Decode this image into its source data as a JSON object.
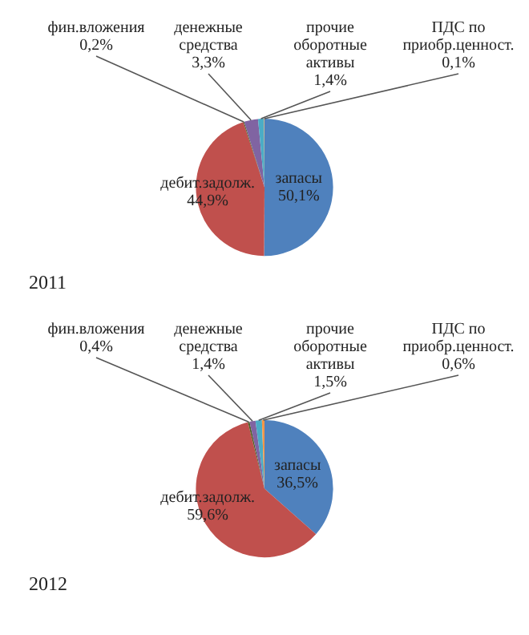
{
  "chart_data": [
    {
      "type": "pie",
      "title": "2011",
      "categories": [
        "запасы",
        "дебит.задолж.",
        "фин.вложения",
        "денежные средства",
        "прочие оборотные активы",
        "ПДС по приобр.ценност."
      ],
      "values": [
        50.1,
        44.9,
        0.2,
        3.3,
        1.4,
        0.1
      ],
      "value_labels": [
        "50,1%",
        "44,9%",
        "0,2%",
        "3,3%",
        "1,4%",
        "0,1%"
      ],
      "colors": [
        "#4f81bd",
        "#c0504d",
        "#4f6228",
        "#8064a2",
        "#4bacc6",
        "#f79646"
      ],
      "legend": false
    },
    {
      "type": "pie",
      "title": "2012",
      "categories": [
        "запасы",
        "дебит.задолж.",
        "фин.вложения",
        "денежные средства",
        "прочие оборотные активы",
        "ПДС по приобр.ценност."
      ],
      "values": [
        36.5,
        59.6,
        0.4,
        1.4,
        1.5,
        0.6
      ],
      "value_labels": [
        "36,5%",
        "59,6%",
        "0,4%",
        "1,4%",
        "1,5%",
        "0,6%"
      ],
      "colors": [
        "#4f81bd",
        "#c0504d",
        "#4f6228",
        "#8064a2",
        "#4bacc6",
        "#f79646"
      ],
      "legend": false
    }
  ]
}
